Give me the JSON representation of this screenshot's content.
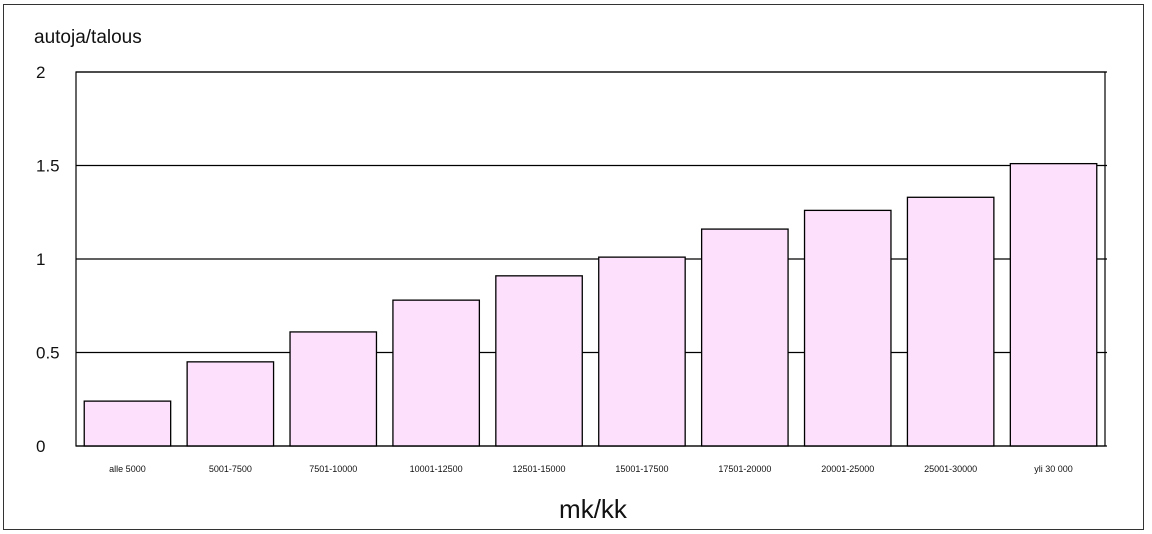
{
  "chart_data": {
    "type": "bar",
    "ylabel": "autoja/talous",
    "xlabel": "mk/kk",
    "ylim": [
      0,
      2
    ],
    "yticks": [
      "0",
      "0.5",
      "1",
      "1.5",
      "2"
    ],
    "grid": true,
    "categories": [
      "alle 5000",
      "5001-7500",
      "7501-10000",
      "10001-12500",
      "12501-15000",
      "15001-17500",
      "17501-20000",
      "20001-25000",
      "25001-30000",
      "yli 30 000"
    ],
    "values": [
      0.24,
      0.45,
      0.61,
      0.78,
      0.91,
      1.01,
      1.16,
      1.26,
      1.33,
      1.51
    ],
    "bar_color": "#fce0fc",
    "bar_edge_color": "#000000"
  }
}
